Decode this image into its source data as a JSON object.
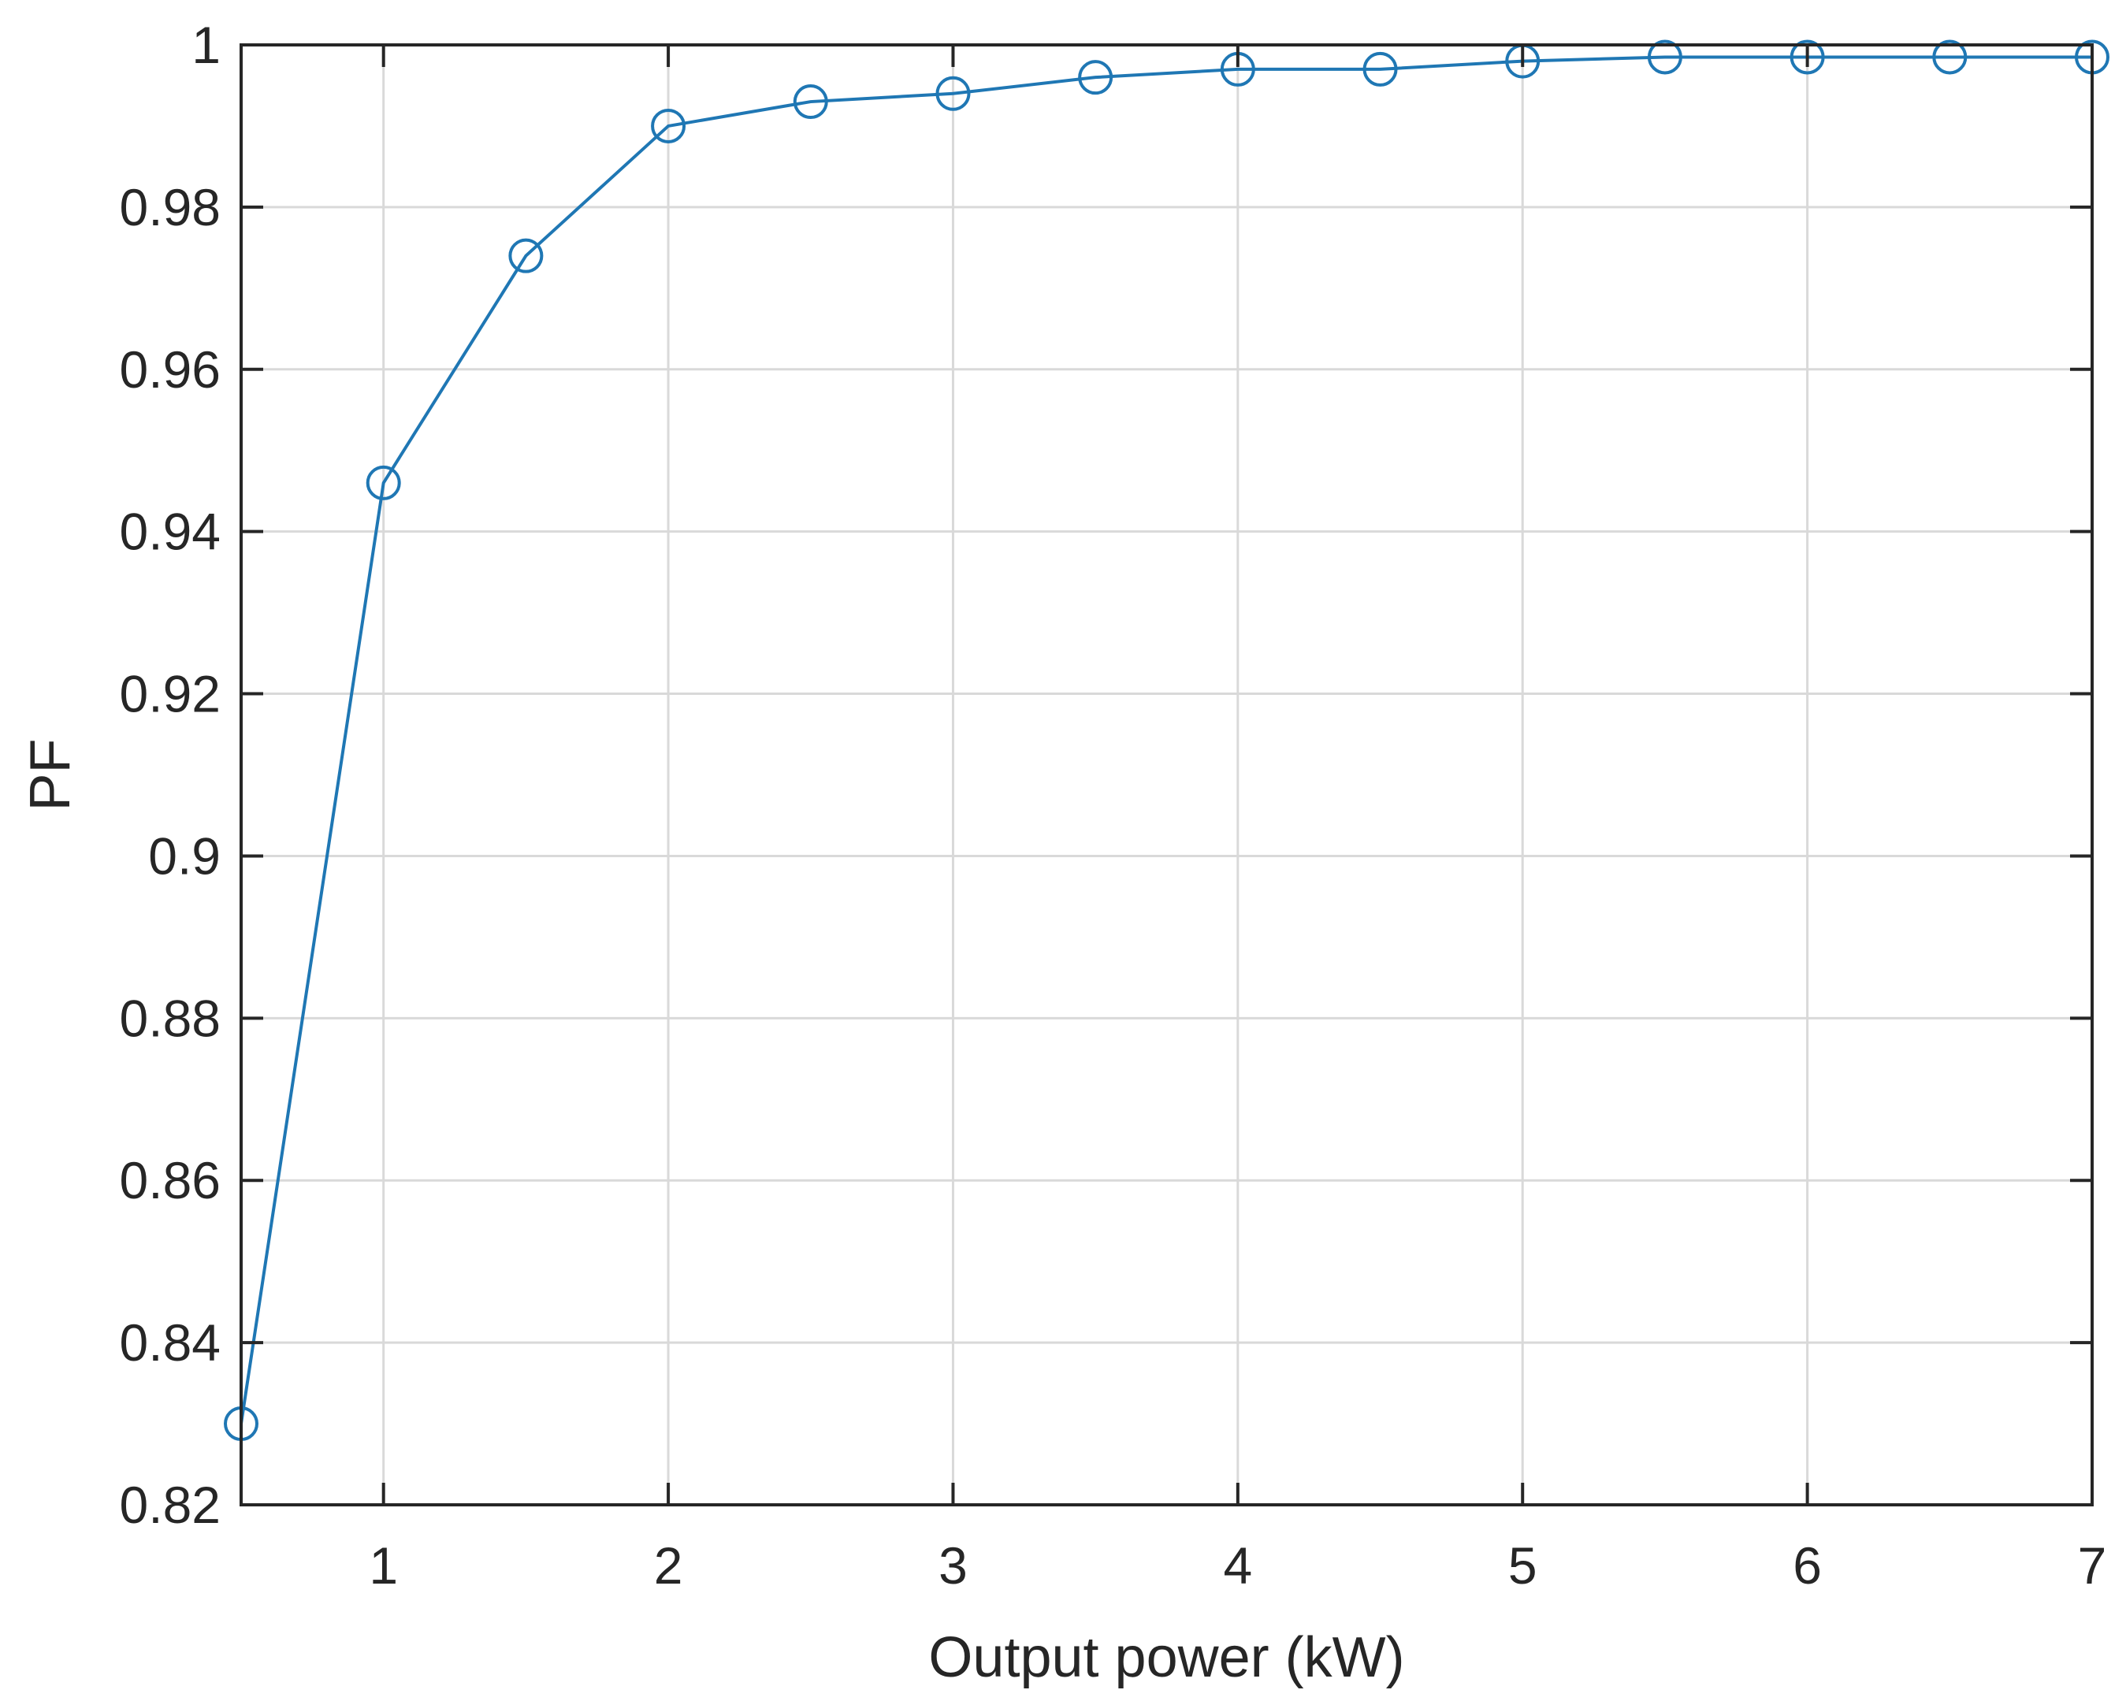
{
  "chart_data": {
    "type": "line",
    "title": "",
    "xlabel": "Output power (kW)",
    "ylabel": "PF",
    "xlim": [
      0.5,
      7
    ],
    "ylim": [
      0.82,
      1.0
    ],
    "grid": true,
    "x_ticks": [
      1,
      2,
      3,
      4,
      5,
      6,
      7
    ],
    "x_tick_labels": [
      "1",
      "2",
      "3",
      "4",
      "5",
      "6",
      "7"
    ],
    "y_ticks": [
      0.82,
      0.84,
      0.86,
      0.88,
      0.9,
      0.92,
      0.94,
      0.96,
      0.98,
      1.0
    ],
    "y_tick_labels": [
      "0.82",
      "0.84",
      "0.86",
      "0.88",
      "0.9",
      "0.92",
      "0.94",
      "0.96",
      "0.98",
      "1"
    ],
    "series": [
      {
        "color": "#1f77b4",
        "marker": "circle",
        "x": [
          0.5,
          1.0,
          1.5,
          2.0,
          2.5,
          3.0,
          3.5,
          4.0,
          4.5,
          5.0,
          5.5,
          6.0,
          6.5,
          7.0
        ],
        "y": [
          0.83,
          0.946,
          0.974,
          0.99,
          0.993,
          0.994,
          0.996,
          0.997,
          0.997,
          0.998,
          0.9985,
          0.9985,
          0.9985,
          0.9985
        ]
      }
    ]
  }
}
